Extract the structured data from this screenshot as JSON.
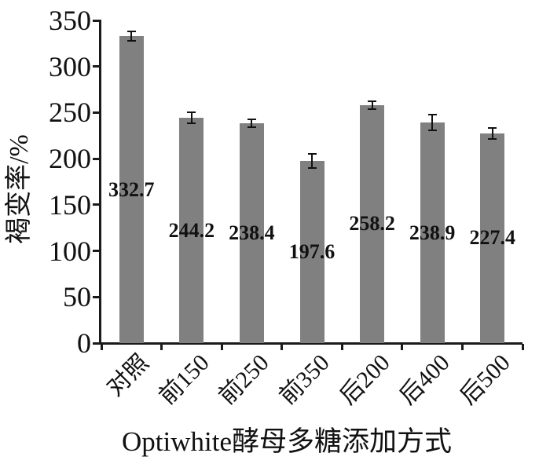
{
  "chart_data": {
    "type": "bar",
    "title": "",
    "xlabel": "Optiwhite酵母多糖添加方式",
    "ylabel": "褐变率/%",
    "categories": [
      "对照",
      "前150",
      "前250",
      "前350",
      "后200",
      "后400",
      "后500"
    ],
    "values": [
      332.7,
      244.2,
      238.4,
      197.6,
      258.2,
      238.9,
      227.4
    ],
    "value_labels": [
      "332.7",
      "244.2",
      "238.4",
      "197.6",
      "258.2",
      "238.9",
      "227.4"
    ],
    "error_bars": [
      5,
      6,
      4.5,
      7.5,
      4.5,
      8.5,
      6
    ],
    "yticks": [
      0,
      50,
      100,
      150,
      200,
      250,
      300,
      350
    ],
    "ylim": [
      0,
      350
    ],
    "grid": false,
    "legend": false,
    "xtick_label_rotation_deg": -45,
    "bar_color": "#808080",
    "axis_color": "#1a1a1a",
    "text_color": "#111111"
  }
}
